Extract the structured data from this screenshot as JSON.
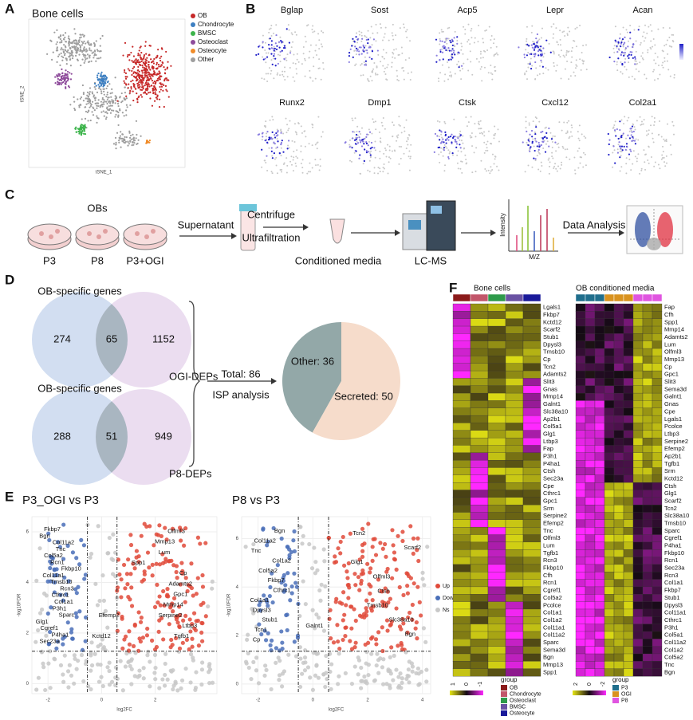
{
  "panel_labels": [
    "A",
    "B",
    "C",
    "D",
    "E",
    "F"
  ],
  "panel_a": {
    "title": "Bone cells",
    "x_label": "tSNE_1",
    "y_label": "tSNE_2",
    "legend": [
      {
        "name": "OB",
        "color": "#c62828"
      },
      {
        "name": "Chondrocyte",
        "color": "#3d7fc1"
      },
      {
        "name": "BMSC",
        "color": "#3cb44b"
      },
      {
        "name": "Osteoclast",
        "color": "#8e4b9b"
      },
      {
        "name": "Osteocyte",
        "color": "#f08c2a"
      },
      {
        "name": "Other",
        "color": "#9e9e9e"
      }
    ]
  },
  "panel_b": {
    "genes": [
      "Bglap",
      "Sost",
      "Acp5",
      "Lepr",
      "Acan",
      "Runx2",
      "Dmp1",
      "Ctsk",
      "Cxcl12",
      "Col2a1"
    ]
  },
  "panel_c": {
    "group_label": "OBs",
    "samples": [
      "P3",
      "P8",
      "P3+OGI"
    ],
    "steps": [
      "Supernatant",
      "Centrifuge",
      "Ultrafiltration",
      "Conditioned media",
      "LC-MS",
      "Data Analysis"
    ],
    "ms_axes": [
      "Intensity",
      "M/Z"
    ]
  },
  "panel_d": {
    "venn": [
      {
        "set_a": "OB-specific genes",
        "set_b": "OGI-DEPs",
        "only_a": 274,
        "both": 65,
        "only_b": 1152
      },
      {
        "set_a": "OB-specific genes",
        "set_b": "P8-DEPs",
        "only_a": 288,
        "both": 51,
        "only_b": 949
      }
    ],
    "total": "Total: 86",
    "analysis": "ISP analysis",
    "pie": {
      "type": "pie",
      "values": [
        36,
        50
      ],
      "value_labels": [
        "Other: 36",
        "Secreted: 50"
      ],
      "colors": [
        "#93a8a8",
        "#f6dccb"
      ]
    }
  },
  "panel_e": {
    "legend": [
      {
        "name": "Up",
        "color": "#e04a3a"
      },
      {
        "name": "Down",
        "color": "#4a6fb8"
      },
      {
        "name": "Ns",
        "color": "#c8c8c8"
      }
    ],
    "plots": [
      {
        "title": "P3_OGI vs P3",
        "x_label": "log2FC",
        "y_label": "-log10FDR",
        "xlim": [
          -2.6,
          4.3
        ],
        "ylim": [
          -0.4,
          6.6
        ],
        "xticks": [
          -2,
          0,
          2
        ],
        "yticks": [
          0,
          2,
          4,
          6
        ],
        "down_genes": [
          "Fkbp7",
          "Bgn",
          "Col11a2",
          "Tnc",
          "Col5a2",
          "Rcn1",
          "Fkbp10",
          "Col11a1",
          "Tmsb10",
          "Rcn3",
          "Cthrc1",
          "Col1a1",
          "P3h1",
          "Sparc",
          "Glg1",
          "Cgref1",
          "P4ha1",
          "Sec23a"
        ],
        "ns_genes": [
          "Efemp2",
          "Kctd12"
        ],
        "up_genes": [
          "Olfml3",
          "Mmp13",
          "Lum",
          "Spp1",
          "Cp",
          "Adamts2",
          "Gpc1",
          "Mmp14",
          "Serpine2",
          "Ltbp3",
          "Tgfb1"
        ]
      },
      {
        "title": "P8 vs P3",
        "x_label": "log2FC",
        "y_label": "-log10FDR",
        "xlim": [
          -2.6,
          4.3
        ],
        "ylim": [
          -0.4,
          6.9
        ],
        "xticks": [
          -2,
          0,
          2,
          4
        ],
        "yticks": [
          0,
          2,
          4,
          6
        ],
        "down_genes": [
          "Bgn",
          "Col11a2",
          "Tnc",
          "Col1a2",
          "Col5a2",
          "Fkbp7",
          "Cthrc1",
          "Col1a1",
          "Dpysl3",
          "Stub1",
          "Tcn1",
          "Cp"
        ],
        "ns_genes": [
          "Galnt1"
        ],
        "up_genes": [
          "Tcn2",
          "Scarf2",
          "Glg1",
          "Olfml3",
          "Ctsh",
          "Tmsb10",
          "Slc38a10",
          "Bgn"
        ]
      }
    ]
  },
  "panel_f": {
    "heatmaps": [
      {
        "title": "Bone cells",
        "scale_labels": [
          1,
          0,
          -1
        ],
        "group_title": "group",
        "groups": [
          {
            "name": "OB",
            "color": "#8b1a1a"
          },
          {
            "name": "Chondrocyte",
            "color": "#c2566a"
          },
          {
            "name": "Osteoclast",
            "color": "#2e9a4a"
          },
          {
            "name": "BMSC",
            "color": "#6a52a3"
          },
          {
            "name": "Osteocyte",
            "color": "#1a1a9a"
          }
        ],
        "genes": [
          "Lgals1",
          "Fkbp7",
          "Kctd12",
          "Scarf2",
          "Stub1",
          "Dpysl3",
          "Tmsb10",
          "Cp",
          "Tcn2",
          "Adamts2",
          "Slit3",
          "Gnas",
          "Mmp14",
          "Galnt1",
          "Slc38a10",
          "Ap2b1",
          "Col5a1",
          "Glg1",
          "Ltbp3",
          "Fap",
          "P3h1",
          "P4ha1",
          "Ctsh",
          "Sec23a",
          "Cpe",
          "Cthrc1",
          "Gpc1",
          "Srm",
          "Serpine2",
          "Efemp2",
          "Tnc",
          "Olfml3",
          "Lum",
          "Tgfb1",
          "Rcn3",
          "Fkbp10",
          "Cfh",
          "Rcn1",
          "Cgref1",
          "Col5a2",
          "Pcolce",
          "Col1a1",
          "Col1a2",
          "Col11a1",
          "Col11a2",
          "Sparc",
          "Sema3d",
          "Bgn",
          "Mmp13",
          "Spp1"
        ]
      },
      {
        "title": "OB conditioned media",
        "scale_labels": [
          2,
          0,
          -2
        ],
        "group_title": "group",
        "groups": [
          {
            "name": "P3",
            "color": "#1f6e8c"
          },
          {
            "name": "OGI",
            "color": "#d9921e"
          },
          {
            "name": "P8",
            "color": "#e055e0"
          }
        ],
        "genes": [
          "Fap",
          "Cfh",
          "Spp1",
          "Mmp14",
          "Adamts2",
          "Lum",
          "Olfml3",
          "Mmp13",
          "Cp",
          "Gpc1",
          "Slit3",
          "Sema3d",
          "Galnt1",
          "Gnas",
          "Cpe",
          "Lgals1",
          "Pcolce",
          "Ltbp3",
          "Serpine2",
          "Efemp2",
          "Ap2b1",
          "Tgfb1",
          "Srm",
          "Kctd12",
          "Ctsh",
          "Glg1",
          "Scarf2",
          "Tcn2",
          "Slc38a10",
          "Tmsb10",
          "Sparc",
          "Cgref1",
          "P4ha1",
          "Fkbp10",
          "Rcn1",
          "Sec23a",
          "Rcn3",
          "Col1a1",
          "Fkbp7",
          "Stub1",
          "Dpysl3",
          "Col11a1",
          "Cthrc1",
          "P3h1",
          "Col5a1",
          "Col11a2",
          "Col1a2",
          "Col5a2",
          "Tnc",
          "Bgn"
        ]
      }
    ]
  }
}
